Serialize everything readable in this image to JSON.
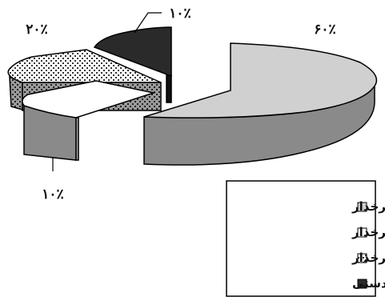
{
  "chart_data": {
    "type": "pie",
    "style": "3d-exploded",
    "slices": [
      {
        "label": "ترولی چرخدار",
        "value": 60,
        "display": "۶۰٪",
        "fill": "#d0d0d0",
        "side_fill": "#8a8a8a",
        "pattern": "solid"
      },
      {
        "label": "گاری های چرخدار",
        "value": 10,
        "display": "۱۰٪",
        "fill": "#ffffff",
        "side_fill": "#8a8a8a",
        "pattern": "solid"
      },
      {
        "label": "ظروف BIN چرخدار",
        "value": 20,
        "display": "۲۰٪",
        "fill": "#ffffff",
        "side_fill": "#7a7a7a",
        "pattern": "dotted-checker"
      },
      {
        "label": "به صورت دستی",
        "value": 10,
        "display": "۱۰٪",
        "fill": "#2a2a2a",
        "side_fill": "#111111",
        "pattern": "solid"
      }
    ],
    "legend_position": "bottom-right",
    "legend": [
      "ترولی چرخدار",
      "گاری های چرخدار",
      "ظروف BIN چرخدار",
      "به صورت دستی"
    ]
  }
}
